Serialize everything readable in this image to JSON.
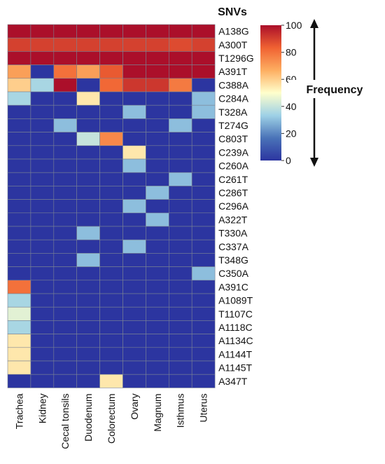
{
  "chart_data": {
    "type": "heatmap",
    "title": "SNVs",
    "columns": [
      "Trachea",
      "Kidney",
      "Cecal tonsils",
      "Duodenum",
      "Colorectum",
      "Ovary",
      "Magnum",
      "Isthmus",
      "Uterus"
    ],
    "rows": [
      "A138G",
      "A300T",
      "T1296G",
      "A391T",
      "C388A",
      "C284A",
      "T328A",
      "T274G",
      "C803T",
      "C239A",
      "C260A",
      "C261T",
      "C286T",
      "C296A",
      "A322T",
      "T330A",
      "C337A",
      "T348G",
      "C350A",
      "A391C",
      "A1089T",
      "T1107C",
      "A1118C",
      "A1134C",
      "A1144T",
      "A1145T",
      "A347T"
    ],
    "values": [
      [
        100,
        100,
        100,
        100,
        100,
        100,
        100,
        100,
        100
      ],
      [
        90,
        90,
        90,
        90,
        90,
        90,
        90,
        88,
        90
      ],
      [
        100,
        100,
        100,
        100,
        100,
        100,
        100,
        100,
        100
      ],
      [
        70,
        0,
        80,
        70,
        85,
        100,
        100,
        100,
        100
      ],
      [
        60,
        35,
        100,
        0,
        82,
        92,
        92,
        78,
        0
      ],
      [
        35,
        0,
        0,
        55,
        0,
        0,
        0,
        0,
        30
      ],
      [
        0,
        0,
        0,
        0,
        0,
        30,
        0,
        0,
        30
      ],
      [
        0,
        0,
        30,
        0,
        0,
        0,
        0,
        30,
        0
      ],
      [
        0,
        0,
        0,
        40,
        75,
        0,
        0,
        0,
        0
      ],
      [
        0,
        0,
        0,
        0,
        0,
        55,
        0,
        0,
        0
      ],
      [
        0,
        0,
        0,
        0,
        0,
        30,
        0,
        0,
        0
      ],
      [
        0,
        0,
        0,
        0,
        0,
        0,
        0,
        30,
        0
      ],
      [
        0,
        0,
        0,
        0,
        0,
        0,
        30,
        0,
        0
      ],
      [
        0,
        0,
        0,
        0,
        0,
        30,
        0,
        0,
        0
      ],
      [
        0,
        0,
        0,
        0,
        0,
        0,
        30,
        0,
        0
      ],
      [
        0,
        0,
        0,
        30,
        0,
        0,
        0,
        0,
        0
      ],
      [
        0,
        0,
        0,
        0,
        0,
        30,
        0,
        0,
        0
      ],
      [
        0,
        0,
        0,
        30,
        0,
        0,
        0,
        0,
        0
      ],
      [
        0,
        0,
        0,
        0,
        0,
        0,
        0,
        0,
        30
      ],
      [
        80,
        0,
        0,
        0,
        0,
        0,
        0,
        0,
        0
      ],
      [
        35,
        0,
        0,
        0,
        0,
        0,
        0,
        0,
        0
      ],
      [
        45,
        0,
        0,
        0,
        0,
        0,
        0,
        0,
        0
      ],
      [
        35,
        0,
        0,
        0,
        0,
        0,
        0,
        0,
        0
      ],
      [
        55,
        0,
        0,
        0,
        0,
        0,
        0,
        0,
        0
      ],
      [
        55,
        0,
        0,
        0,
        0,
        0,
        0,
        0,
        0
      ],
      [
        55,
        0,
        0,
        0,
        0,
        0,
        0,
        0,
        0
      ],
      [
        0,
        0,
        0,
        0,
        55,
        0,
        0,
        0,
        0
      ]
    ],
    "colorbar": {
      "range": [
        0,
        100
      ],
      "ticks": [
        0,
        20,
        40,
        60,
        80,
        100
      ],
      "label": "Frequency",
      "stops": [
        "#2c35a0",
        "#4a73b8",
        "#9ed1e6",
        "#ffffcc",
        "#fdae61",
        "#f06232",
        "#ab0f2a"
      ]
    },
    "grid": true,
    "legend_position": "right",
    "colors": {
      "grid_line": "#7b8493",
      "arrow": "#111111"
    }
  }
}
